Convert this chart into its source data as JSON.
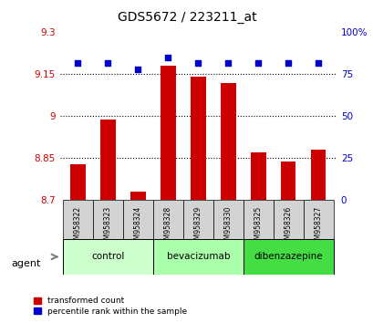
{
  "title": "GDS5672 / 223211_at",
  "samples": [
    "GSM958322",
    "GSM958323",
    "GSM958324",
    "GSM958328",
    "GSM958329",
    "GSM958330",
    "GSM958325",
    "GSM958326",
    "GSM958327"
  ],
  "transformed_counts": [
    8.83,
    8.99,
    8.73,
    9.18,
    9.14,
    9.12,
    8.87,
    8.84,
    8.88
  ],
  "percentile_ranks": [
    82,
    82,
    78,
    85,
    82,
    82,
    82,
    82,
    82
  ],
  "groups": [
    {
      "label": "control",
      "indices": [
        0,
        1,
        2
      ],
      "color": "#ccffcc"
    },
    {
      "label": "bevacizumab",
      "indices": [
        3,
        4,
        5
      ],
      "color": "#aaffaa"
    },
    {
      "label": "dibenzazepine",
      "indices": [
        6,
        7,
        8
      ],
      "color": "#44dd44"
    }
  ],
  "bar_color": "#cc0000",
  "dot_color": "#0000cc",
  "ylim_left": [
    8.7,
    9.3
  ],
  "ylim_right": [
    0,
    100
  ],
  "yticks_left": [
    8.7,
    8.85,
    9.0,
    9.15,
    9.3
  ],
  "ytick_labels_left": [
    "8.7",
    "8.85",
    "9",
    "9.15",
    "9.3"
  ],
  "yticks_right": [
    0,
    25,
    50,
    75,
    100
  ],
  "ytick_labels_right": [
    "0",
    "25",
    "50",
    "75",
    "100%"
  ],
  "hlines": [
    8.85,
    9.0,
    9.15
  ],
  "bar_width": 0.5,
  "sample_bg_color": "#d3d3d3",
  "agent_label": "agent",
  "legend_items": [
    "transformed count",
    "percentile rank within the sample"
  ]
}
